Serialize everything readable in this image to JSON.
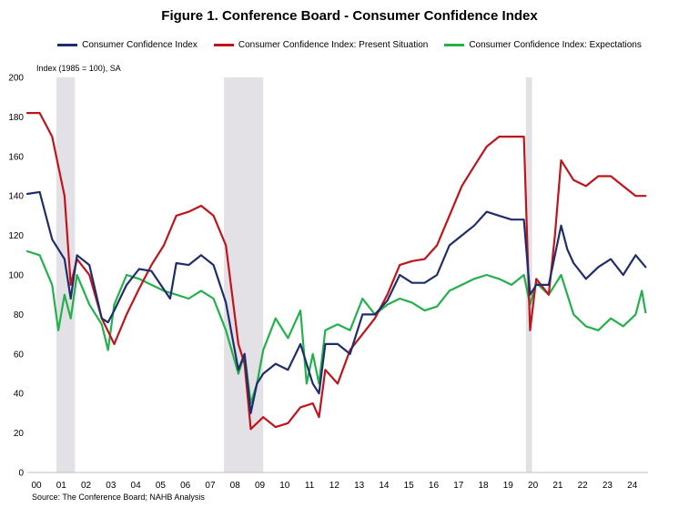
{
  "title": "Figure 1. Conference Board - Consumer Confidence Index",
  "unit_label": "Index (1985 = 100), SA",
  "source": "Source: The Conference Board; NAHB Analysis",
  "legend": [
    {
      "label": "Consumer Confidence Index",
      "color": "#1f2e6b"
    },
    {
      "label": "Consumer Confidence Index: Present Situation",
      "color": "#c0141c"
    },
    {
      "label": "Consumer Confidence Index: Expectations",
      "color": "#22b14c"
    }
  ],
  "chart_data": {
    "type": "line",
    "title": "Figure 1. Conference Board - Consumer Confidence Index",
    "ylabel": "Index (1985 = 100), SA",
    "xlabel": "",
    "ylim": [
      0,
      200
    ],
    "xlim": [
      2000,
      2025
    ],
    "yticks": [
      0,
      20,
      40,
      60,
      80,
      100,
      120,
      140,
      160,
      180,
      200
    ],
    "xtick_labels": [
      "00",
      "01",
      "02",
      "03",
      "04",
      "05",
      "06",
      "07",
      "08",
      "09",
      "10",
      "11",
      "12",
      "13",
      "14",
      "15",
      "16",
      "17",
      "18",
      "19",
      "20",
      "21",
      "22",
      "23",
      "24"
    ],
    "grid": false,
    "legend_position": "top",
    "recessions": [
      [
        2001.17,
        2001.92
      ],
      [
        2007.92,
        2009.5
      ],
      [
        2020.08,
        2020.33
      ]
    ],
    "series": [
      {
        "name": "Consumer Confidence Index",
        "color": "#1f2e6b",
        "x": [
          2000.0,
          2000.5,
          2001.0,
          2001.5,
          2001.75,
          2002.0,
          2002.5,
          2003.0,
          2003.25,
          2003.5,
          2004.0,
          2004.5,
          2005.0,
          2005.75,
          2006.0,
          2006.5,
          2007.0,
          2007.5,
          2008.0,
          2008.5,
          2008.75,
          2009.0,
          2009.25,
          2009.5,
          2010.0,
          2010.5,
          2011.0,
          2011.5,
          2011.75,
          2012.0,
          2012.5,
          2013.0,
          2013.5,
          2014.0,
          2014.5,
          2015.0,
          2015.5,
          2016.0,
          2016.5,
          2017.0,
          2017.5,
          2018.0,
          2018.5,
          2019.0,
          2019.5,
          2020.0,
          2020.25,
          2020.5,
          2021.0,
          2021.5,
          2021.75,
          2022.0,
          2022.5,
          2023.0,
          2023.5,
          2024.0,
          2024.5,
          2024.9
        ],
        "values": [
          141,
          142,
          118,
          108,
          88,
          110,
          105,
          78,
          76,
          82,
          95,
          103,
          102,
          88,
          106,
          105,
          110,
          105,
          86,
          52,
          60,
          30,
          45,
          50,
          55,
          52,
          65,
          45,
          40,
          65,
          65,
          60,
          80,
          80,
          87,
          100,
          96,
          96,
          100,
          115,
          120,
          125,
          132,
          130,
          128,
          128,
          90,
          95,
          95,
          125,
          113,
          106,
          98,
          104,
          108,
          100,
          110,
          104
        ]
      },
      {
        "name": "Consumer Confidence Index: Present Situation",
        "color": "#c0141c",
        "x": [
          2000.0,
          2000.5,
          2001.0,
          2001.5,
          2001.75,
          2002.0,
          2002.5,
          2003.0,
          2003.5,
          2004.0,
          2004.5,
          2005.0,
          2005.5,
          2006.0,
          2006.5,
          2007.0,
          2007.5,
          2008.0,
          2008.5,
          2008.75,
          2009.0,
          2009.25,
          2009.5,
          2010.0,
          2010.5,
          2011.0,
          2011.5,
          2011.75,
          2012.0,
          2012.5,
          2013.0,
          2013.5,
          2014.0,
          2014.5,
          2015.0,
          2015.5,
          2016.0,
          2016.5,
          2017.0,
          2017.5,
          2018.0,
          2018.5,
          2019.0,
          2019.5,
          2020.0,
          2020.25,
          2020.5,
          2021.0,
          2021.25,
          2021.5,
          2022.0,
          2022.5,
          2023.0,
          2023.5,
          2024.0,
          2024.5,
          2024.9
        ],
        "values": [
          182,
          182,
          170,
          140,
          95,
          108,
          100,
          78,
          65,
          80,
          93,
          105,
          115,
          130,
          132,
          135,
          130,
          115,
          65,
          55,
          22,
          25,
          28,
          23,
          25,
          33,
          35,
          28,
          52,
          45,
          62,
          70,
          78,
          90,
          105,
          107,
          108,
          115,
          130,
          145,
          155,
          165,
          170,
          170,
          170,
          72,
          98,
          90,
          120,
          158,
          148,
          145,
          150,
          150,
          145,
          140,
          140
        ]
      },
      {
        "name": "Consumer Confidence Index: Expectations",
        "color": "#22b14c",
        "x": [
          2000.0,
          2000.5,
          2001.0,
          2001.25,
          2001.5,
          2001.75,
          2002.0,
          2002.5,
          2003.0,
          2003.25,
          2003.5,
          2004.0,
          2004.5,
          2005.0,
          2005.5,
          2006.0,
          2006.5,
          2007.0,
          2007.5,
          2008.0,
          2008.5,
          2008.75,
          2009.0,
          2009.25,
          2009.5,
          2010.0,
          2010.5,
          2011.0,
          2011.25,
          2011.5,
          2011.75,
          2012.0,
          2012.5,
          2013.0,
          2013.5,
          2014.0,
          2014.5,
          2015.0,
          2015.5,
          2016.0,
          2016.5,
          2017.0,
          2017.5,
          2018.0,
          2018.5,
          2019.0,
          2019.5,
          2020.0,
          2020.25,
          2020.5,
          2021.0,
          2021.5,
          2022.0,
          2022.5,
          2023.0,
          2023.5,
          2024.0,
          2024.5,
          2024.75,
          2024.9
        ],
        "values": [
          112,
          110,
          95,
          72,
          90,
          78,
          100,
          85,
          75,
          62,
          85,
          100,
          98,
          95,
          92,
          90,
          88,
          92,
          88,
          72,
          50,
          60,
          35,
          45,
          62,
          78,
          68,
          82,
          45,
          60,
          45,
          72,
          75,
          72,
          88,
          80,
          85,
          88,
          86,
          82,
          84,
          92,
          95,
          98,
          100,
          98,
          95,
          100,
          85,
          96,
          90,
          100,
          80,
          74,
          72,
          78,
          74,
          80,
          92,
          81
        ]
      }
    ]
  }
}
